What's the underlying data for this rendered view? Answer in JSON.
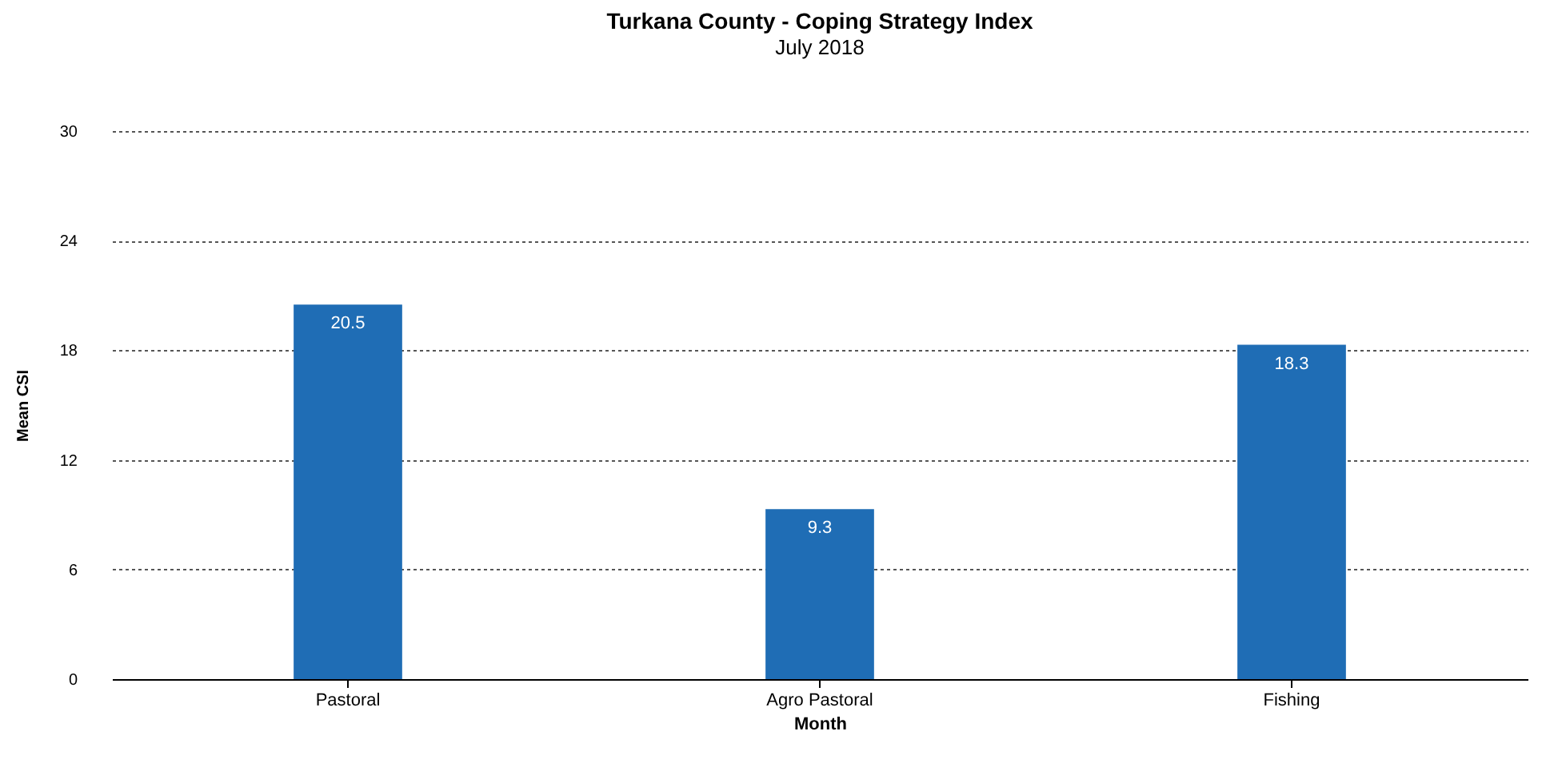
{
  "chart_data": {
    "type": "bar",
    "title": "Turkana County - Coping Strategy Index",
    "subtitle": "July 2018",
    "xlabel": "Month",
    "ylabel": "Mean CSI",
    "categories": [
      "Pastoral",
      "Agro Pastoral",
      "Fishing"
    ],
    "values": [
      20.5,
      9.3,
      18.3
    ],
    "color": "#1f6db5",
    "ylim": [
      0,
      30
    ],
    "yticks": [
      0,
      6,
      12,
      18,
      24,
      30
    ],
    "grid": "y",
    "data_labels": true
  }
}
